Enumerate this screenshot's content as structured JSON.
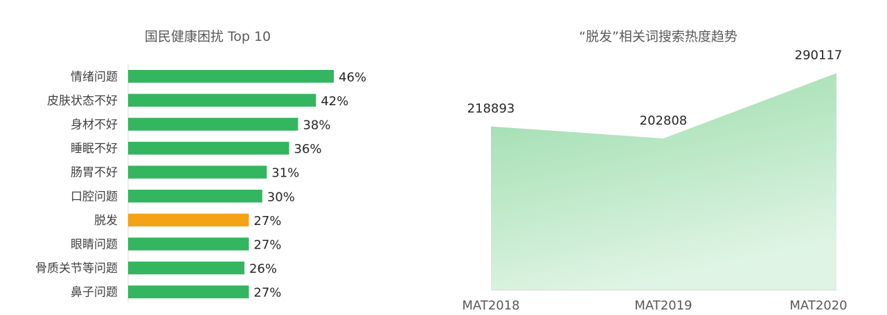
{
  "colors": {
    "bar_default": "#34b560",
    "bar_highlight": "#f4a317",
    "area_top": "#97dba8",
    "area_bottom": "#dff4e4",
    "axis": "#d9d9d9"
  },
  "chart_data": [
    {
      "type": "bar",
      "orientation": "horizontal",
      "title": "国民健康困扰 Top 10",
      "categories": [
        "情绪问题",
        "皮肤状态不好",
        "身材不好",
        "睡眠不好",
        "肠胃不好",
        "口腔问题",
        "脱发",
        "眼睛问题",
        "骨质关节等问题",
        "鼻子问题"
      ],
      "values": [
        46,
        42,
        38,
        36,
        31,
        30,
        27,
        27,
        26,
        27
      ],
      "value_labels": [
        "46%",
        "42%",
        "38%",
        "36%",
        "31%",
        "30%",
        "27%",
        "27%",
        "26%",
        "27%"
      ],
      "highlight_index": 6,
      "xlim": [
        0,
        50
      ],
      "grid": false
    },
    {
      "type": "area",
      "title": "“脱发”相关词搜索热度趋势",
      "categories": [
        "MAT2018",
        "MAT2019",
        "MAT2020"
      ],
      "values": [
        218893,
        202808,
        290117
      ],
      "value_labels": [
        "218893",
        "202808",
        "290117"
      ],
      "ylim": [
        0,
        300000
      ],
      "grid": false
    }
  ]
}
